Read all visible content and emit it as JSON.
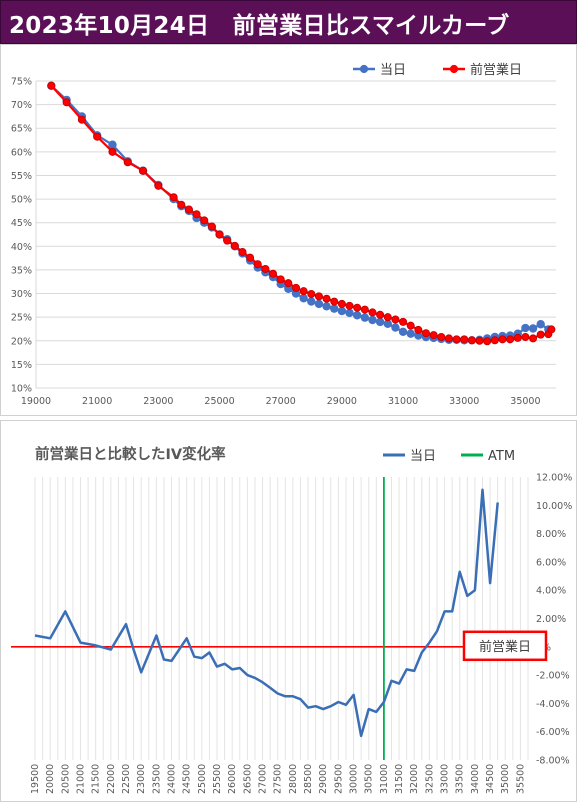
{
  "banner": {
    "title": "2023年10月24日　前営業日比スマイルカーブ"
  },
  "chart_data": [
    {
      "type": "line",
      "title": "",
      "xlabel": "",
      "ylabel": "",
      "xlim": [
        19000,
        36000
      ],
      "ylim": [
        10,
        75
      ],
      "x_ticks": [
        "19000",
        "21000",
        "23000",
        "25000",
        "27000",
        "29000",
        "31000",
        "33000",
        "35000"
      ],
      "y_ticks": [
        "10%",
        "15%",
        "20%",
        "25%",
        "30%",
        "35%",
        "40%",
        "45%",
        "50%",
        "55%",
        "60%",
        "65%",
        "70%",
        "75%"
      ],
      "legend": "top-right",
      "grid": true,
      "series": [
        {
          "name": "当日",
          "color": "#4472c4",
          "points": [
            [
              19500,
              74.0
            ],
            [
              20000,
              71.0
            ],
            [
              20500,
              67.5
            ],
            [
              21000,
              63.5
            ],
            [
              21500,
              61.5
            ],
            [
              22000,
              58.0
            ],
            [
              22500,
              56.0
            ],
            [
              23000,
              53.0
            ],
            [
              23500,
              50.0
            ],
            [
              23750,
              48.5
            ],
            [
              24000,
              47.5
            ],
            [
              24250,
              46.0
            ],
            [
              24500,
              45.0
            ],
            [
              24750,
              44.0
            ],
            [
              25000,
              42.5
            ],
            [
              25250,
              41.5
            ],
            [
              25500,
              40.0
            ],
            [
              25750,
              38.5
            ],
            [
              26000,
              37.0
            ],
            [
              26250,
              35.5
            ],
            [
              26500,
              34.5
            ],
            [
              26750,
              33.5
            ],
            [
              27000,
              32.0
            ],
            [
              27250,
              31.0
            ],
            [
              27500,
              30.0
            ],
            [
              27750,
              29.0
            ],
            [
              28000,
              28.3
            ],
            [
              28250,
              27.8
            ],
            [
              28500,
              27.3
            ],
            [
              28750,
              26.8
            ],
            [
              29000,
              26.3
            ],
            [
              29250,
              25.9
            ],
            [
              29500,
              25.4
            ],
            [
              29750,
              24.9
            ],
            [
              30000,
              24.4
            ],
            [
              30250,
              24.0
            ],
            [
              30500,
              23.6
            ],
            [
              30750,
              22.8
            ],
            [
              31000,
              21.9
            ],
            [
              31250,
              21.5
            ],
            [
              31500,
              21.1
            ],
            [
              31750,
              20.8
            ],
            [
              32000,
              20.6
            ],
            [
              32250,
              20.4
            ],
            [
              32500,
              20.2
            ],
            [
              32750,
              20.2
            ],
            [
              33000,
              20.1
            ],
            [
              33250,
              20.1
            ],
            [
              33500,
              20.2
            ],
            [
              33750,
              20.5
            ],
            [
              34000,
              20.8
            ],
            [
              34250,
              21.0
            ],
            [
              34500,
              21.1
            ],
            [
              34750,
              21.5
            ],
            [
              35000,
              22.7
            ],
            [
              35250,
              22.6
            ],
            [
              35500,
              23.5
            ],
            [
              35750,
              22.4
            ]
          ]
        },
        {
          "name": "前営業日",
          "color": "#ff0000",
          "points": [
            [
              19500,
              74.0
            ],
            [
              20000,
              70.5
            ],
            [
              20500,
              66.8
            ],
            [
              21000,
              63.2
            ],
            [
              21500,
              60.0
            ],
            [
              22000,
              57.8
            ],
            [
              22500,
              56.0
            ],
            [
              23000,
              52.8
            ],
            [
              23500,
              50.4
            ],
            [
              23750,
              48.8
            ],
            [
              24000,
              47.8
            ],
            [
              24250,
              46.8
            ],
            [
              24500,
              45.5
            ],
            [
              24750,
              44.2
            ],
            [
              25000,
              42.5
            ],
            [
              25250,
              41.2
            ],
            [
              25500,
              40.1
            ],
            [
              25750,
              38.8
            ],
            [
              26000,
              37.6
            ],
            [
              26250,
              36.2
            ],
            [
              26500,
              35.2
            ],
            [
              26750,
              34.2
            ],
            [
              27000,
              33.0
            ],
            [
              27250,
              32.2
            ],
            [
              27500,
              31.2
            ],
            [
              27750,
              30.5
            ],
            [
              28000,
              29.9
            ],
            [
              28250,
              29.4
            ],
            [
              28500,
              28.9
            ],
            [
              28750,
              28.3
            ],
            [
              29000,
              27.8
            ],
            [
              29250,
              27.4
            ],
            [
              29500,
              27.0
            ],
            [
              29750,
              26.6
            ],
            [
              30000,
              26.0
            ],
            [
              30250,
              25.5
            ],
            [
              30500,
              25.0
            ],
            [
              30750,
              24.5
            ],
            [
              31000,
              24.0
            ],
            [
              31250,
              23.2
            ],
            [
              31500,
              22.3
            ],
            [
              31750,
              21.6
            ],
            [
              32000,
              21.2
            ],
            [
              32250,
              20.8
            ],
            [
              32500,
              20.5
            ],
            [
              32750,
              20.3
            ],
            [
              33000,
              20.3
            ],
            [
              33250,
              20.1
            ],
            [
              33500,
              20.0
            ],
            [
              33750,
              19.9
            ],
            [
              34000,
              20.1
            ],
            [
              34250,
              20.3
            ],
            [
              34500,
              20.3
            ],
            [
              34750,
              20.6
            ],
            [
              35000,
              20.8
            ],
            [
              35250,
              20.5
            ],
            [
              35500,
              21.3
            ],
            [
              35750,
              21.4
            ],
            [
              35850,
              22.4
            ]
          ]
        }
      ]
    },
    {
      "type": "line",
      "title": "前営業日と比較したIV変化率",
      "xlabel": "",
      "ylabel": "",
      "ylim": [
        -8,
        12
      ],
      "y_ticks": [
        "12.00%",
        "10.00%",
        "8.00%",
        "6.00%",
        "4.00%",
        "2.00%",
        "0%",
        "-2.00%",
        "-4.00%",
        "-6.00%",
        "-8.00%"
      ],
      "categories": [
        "19500",
        "19750",
        "20000",
        "20250",
        "20500",
        "20750",
        "21000",
        "21250",
        "21500",
        "21750",
        "22000",
        "22250",
        "22500",
        "22750",
        "23000",
        "23250",
        "23500",
        "23750",
        "24000",
        "24250",
        "24500",
        "24750",
        "25000",
        "25250",
        "25500",
        "25750",
        "26000",
        "26250",
        "26500",
        "26750",
        "27000",
        "27250",
        "27500",
        "27750",
        "28000",
        "28250",
        "28500",
        "28750",
        "29000",
        "29250",
        "29500",
        "29750",
        "30000",
        "30250",
        "30500",
        "30750",
        "31000",
        "31250",
        "31500",
        "31750",
        "32000",
        "32250",
        "32500",
        "32750",
        "33000",
        "33250",
        "33500",
        "33750",
        "34000",
        "34250",
        "34500",
        "34750",
        "35000",
        "35250",
        "35500",
        "35750"
      ],
      "x_tick_labels": [
        "19500",
        "20000",
        "20500",
        "21000",
        "21500",
        "22000",
        "22500",
        "23000",
        "23500",
        "24000",
        "24500",
        "25000",
        "25500",
        "26000",
        "26500",
        "27000",
        "27500",
        "28000",
        "28500",
        "29000",
        "29500",
        "30000",
        "30500",
        "31000",
        "31500",
        "32000",
        "32500",
        "33000",
        "33500",
        "34000",
        "34500",
        "35000",
        "35500"
      ],
      "legend": "top-right",
      "grid": true,
      "series": [
        {
          "name": "当日",
          "color": "#3a6eb5",
          "values": [
            0.8,
            null,
            0.6,
            null,
            2.5,
            null,
            0.3,
            null,
            0.1,
            null,
            -0.2,
            null,
            1.6,
            -0.2,
            -1.8,
            null,
            0.8,
            -0.9,
            -1.0,
            null,
            0.6,
            -0.7,
            -0.8,
            -0.4,
            -1.4,
            -1.2,
            -1.6,
            -1.5,
            -2.0,
            -2.2,
            -2.5,
            -2.9,
            -3.3,
            -3.5,
            -3.5,
            -3.7,
            -4.3,
            -4.2,
            -4.4,
            -4.2,
            -3.9,
            -4.1,
            -3.4,
            -6.3,
            -4.4,
            -4.6,
            -3.9,
            -2.4,
            -2.6,
            -1.6,
            -1.7,
            -0.4,
            0.3,
            1.1,
            2.5,
            2.5,
            5.3,
            3.6,
            4.0,
            11.1,
            4.5,
            10.2,
            null,
            null,
            null,
            null
          ]
        },
        {
          "name": "ATM",
          "color": "#00b050",
          "at": "31000"
        }
      ],
      "annotations": [
        {
          "text": "前営業日",
          "value": 0,
          "color": "#ff0000"
        }
      ]
    }
  ]
}
